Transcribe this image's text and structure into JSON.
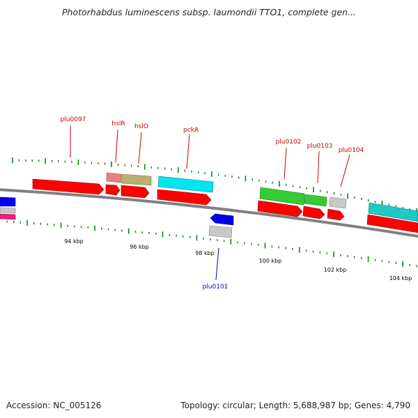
{
  "title": "Photorhabdus luminescens subsp. laumondii TTO1, complete gen...",
  "accession": "Accession: NC_005126",
  "summary": "Topology: circular; Length: 5,688,987 bp; Genes: 4,790",
  "colors": {
    "backbone": "#808080",
    "tick": "#1a7a1a",
    "forward_label": "#cc0000",
    "reverse_label": "#0000aa",
    "cds": "#ff0000",
    "rrna": "#e88080",
    "misc": "#b8b070",
    "cyan": "#00e5f0",
    "teal": "#20c8c8",
    "green": "#33cc33",
    "grey": "#c8c8c8",
    "blue": "#0000ee",
    "magenta": "#ee2080"
  },
  "scale": {
    "unit": "kbp",
    "labels": [
      "94 kbp",
      "96 kbp",
      "98 kbp",
      "100 kbp",
      "102 kbp",
      "104 kbp"
    ]
  },
  "gene_labels": [
    {
      "name": "plu0097",
      "strand": "forward"
    },
    {
      "name": "hslR",
      "strand": "forward"
    },
    {
      "name": "hslO",
      "strand": "forward"
    },
    {
      "name": "pckA",
      "strand": "forward"
    },
    {
      "name": "plu0102",
      "strand": "forward"
    },
    {
      "name": "plu0103",
      "strand": "forward"
    },
    {
      "name": "plu0104",
      "strand": "forward"
    },
    {
      "name": "plu0101",
      "strand": "reverse"
    }
  ]
}
